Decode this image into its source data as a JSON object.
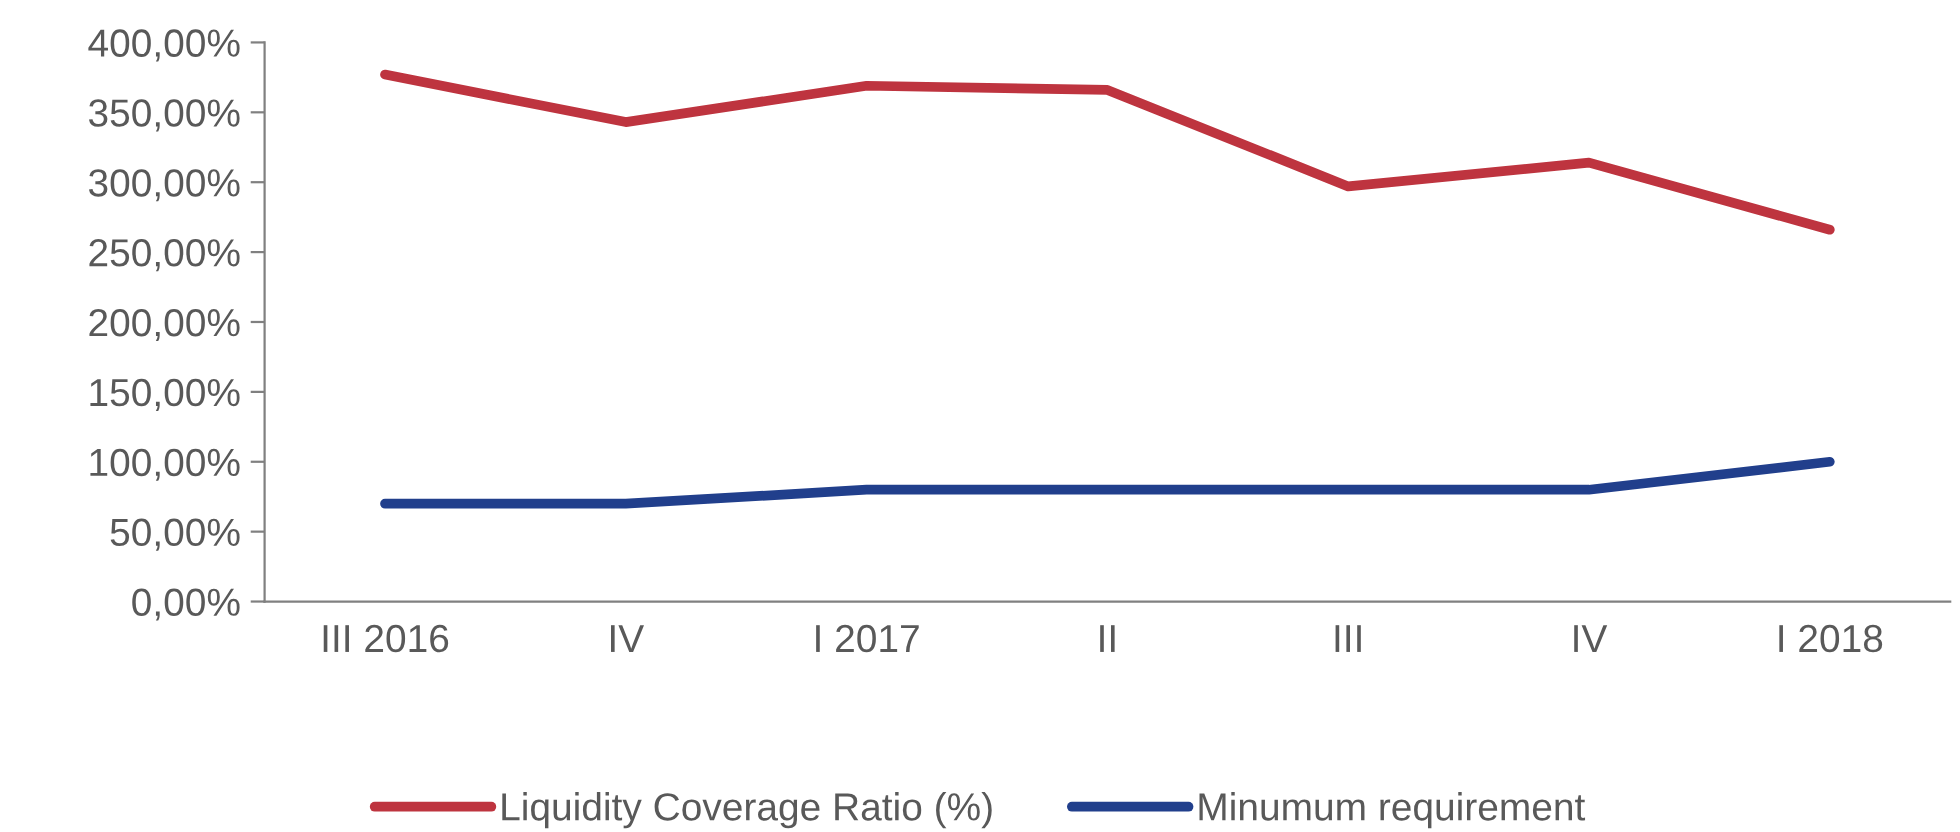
{
  "chart_data": {
    "type": "line",
    "categories": [
      "III 2016",
      "IV",
      "I 2017",
      "II",
      "III",
      "IV",
      "I 2018"
    ],
    "series": [
      {
        "name": "Liquidity Coverage Ratio (%)",
        "color": "#be343f",
        "values": [
          377,
          343,
          369,
          366,
          297,
          314,
          266
        ]
      },
      {
        "name": "Minumum requirement",
        "color": "#213f8c",
        "values": [
          70,
          70,
          80,
          80,
          80,
          80,
          100
        ]
      }
    ],
    "ylim": [
      0,
      400
    ],
    "yticks": [
      {
        "value": 0,
        "label": "0,00%"
      },
      {
        "value": 50,
        "label": "50,00%"
      },
      {
        "value": 100,
        "label": "100,00%"
      },
      {
        "value": 150,
        "label": "150,00%"
      },
      {
        "value": 200,
        "label": "200,00%"
      },
      {
        "value": 250,
        "label": "250,00%"
      },
      {
        "value": 300,
        "label": "300,00%"
      },
      {
        "value": 350,
        "label": "350,00%"
      },
      {
        "value": 400,
        "label": "400,00%"
      }
    ],
    "grid": false,
    "legend": "bottom",
    "marker": "none",
    "line_style": "solid"
  }
}
